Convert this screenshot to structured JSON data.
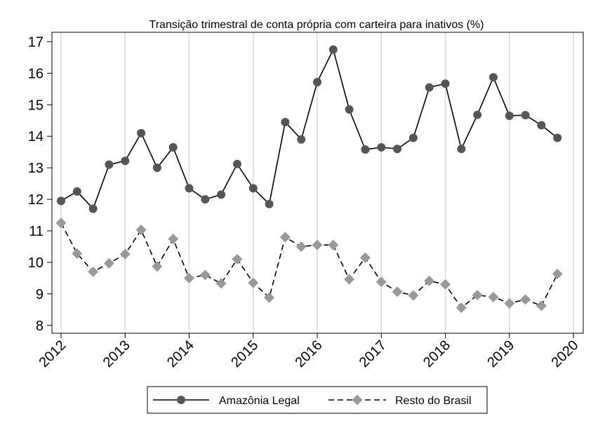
{
  "chart_data": {
    "type": "line",
    "title": "Transição trimestral de conta própria com carteira para inativos (%)",
    "xlabel": "",
    "ylabel": "",
    "xlim": [
      2012,
      2020
    ],
    "ylim": [
      7.75,
      17.3
    ],
    "x_ticks": [
      "2012",
      "2013",
      "2014",
      "2015",
      "2016",
      "2017",
      "2018",
      "2019",
      "2020"
    ],
    "y_ticks": [
      8,
      9,
      10,
      11,
      12,
      13,
      14,
      15,
      16,
      17
    ],
    "grid": "vertical",
    "legend_position": "bottom",
    "x": [
      2012.0,
      2012.25,
      2012.5,
      2012.75,
      2013.0,
      2013.25,
      2013.5,
      2013.75,
      2014.0,
      2014.25,
      2014.5,
      2014.75,
      2015.0,
      2015.25,
      2015.5,
      2015.75,
      2016.0,
      2016.25,
      2016.5,
      2016.75,
      2017.0,
      2017.25,
      2017.5,
      2017.75,
      2018.0,
      2018.25,
      2018.5,
      2018.75,
      2019.0,
      2019.25,
      2019.5,
      2019.75
    ],
    "series": [
      {
        "name": "Amazônia Legal",
        "color": "#555555",
        "line": "solid",
        "marker": "circle",
        "values": [
          11.95,
          12.25,
          11.7,
          13.1,
          13.22,
          14.1,
          13.0,
          13.65,
          12.35,
          12.0,
          12.15,
          13.12,
          12.35,
          11.85,
          14.45,
          13.9,
          15.72,
          16.75,
          14.85,
          13.58,
          13.65,
          13.6,
          13.95,
          15.55,
          15.67,
          13.6,
          14.68,
          15.87,
          14.65,
          14.67,
          14.35,
          13.95
        ]
      },
      {
        "name": "Resto do Brasil",
        "color": "#999999",
        "line": "dashed",
        "marker": "diamond",
        "values": [
          11.25,
          10.28,
          9.7,
          9.97,
          10.26,
          11.03,
          9.87,
          10.74,
          9.5,
          9.6,
          9.33,
          10.1,
          9.35,
          8.88,
          10.8,
          10.5,
          10.55,
          10.55,
          9.46,
          10.15,
          9.38,
          9.07,
          8.95,
          9.41,
          9.3,
          8.56,
          8.96,
          8.9,
          8.7,
          8.82,
          8.62,
          9.63
        ]
      }
    ]
  }
}
